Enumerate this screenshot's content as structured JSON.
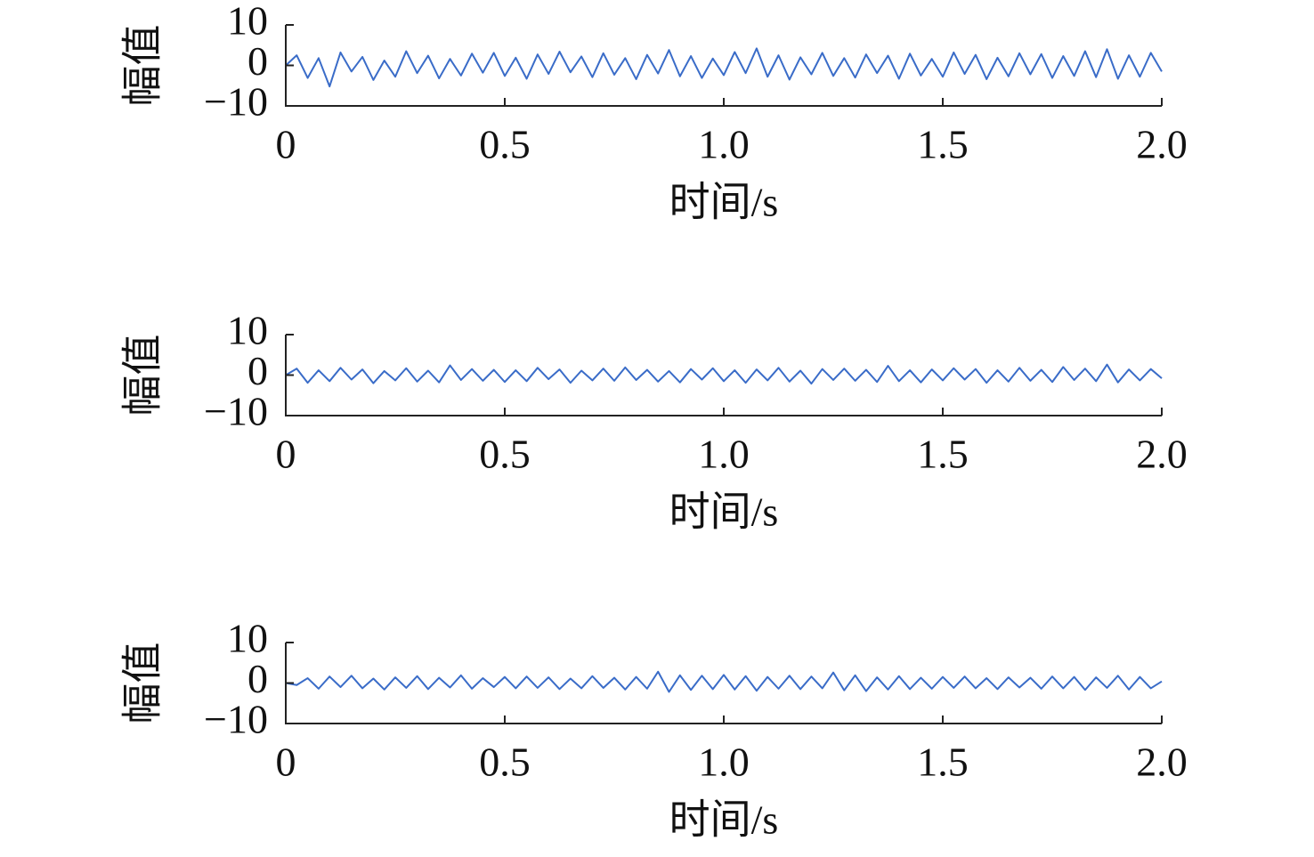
{
  "chart_data": [
    {
      "type": "line",
      "xlabel": "时间/s",
      "ylabel": "幅值",
      "x": [
        0,
        0.025,
        0.05,
        0.075,
        0.1,
        0.125,
        0.15,
        0.175,
        0.2,
        0.225,
        0.25,
        0.275,
        0.3,
        0.325,
        0.35,
        0.375,
        0.4,
        0.425,
        0.45,
        0.475,
        0.5,
        0.525,
        0.55,
        0.575,
        0.6,
        0.625,
        0.65,
        0.675,
        0.7,
        0.725,
        0.75,
        0.775,
        0.8,
        0.825,
        0.85,
        0.875,
        0.9,
        0.925,
        0.95,
        0.975,
        1,
        1.025,
        1.05,
        1.075,
        1.1,
        1.125,
        1.15,
        1.175,
        1.2,
        1.225,
        1.25,
        1.275,
        1.3,
        1.325,
        1.35,
        1.375,
        1.4,
        1.425,
        1.45,
        1.475,
        1.5,
        1.525,
        1.55,
        1.575,
        1.6,
        1.625,
        1.65,
        1.675,
        1.7,
        1.725,
        1.75,
        1.775,
        1.8,
        1.825,
        1.85,
        1.875,
        1.9,
        1.925,
        1.95,
        1.975,
        2
      ],
      "series": [
        {
          "color": "#3a6cc8",
          "values": [
            0,
            2.5,
            -3.1,
            1.8,
            -5.2,
            3.2,
            -1.5,
            2.1,
            -3.6,
            1.2,
            -2.8,
            3.5,
            -1.9,
            2.4,
            -3.2,
            1.6,
            -2.5,
            2.9,
            -1.8,
            3.1,
            -2.6,
            1.9,
            -3.3,
            2.7,
            -2.1,
            3.4,
            -1.7,
            2.2,
            -2.9,
            3.0,
            -2.3,
            1.8,
            -3.4,
            2.6,
            -2.0,
            3.8,
            -2.7,
            2.3,
            -3.1,
            1.7,
            -2.4,
            3.3,
            -1.9,
            4.2,
            -2.8,
            2.5,
            -3.5,
            2.0,
            -2.2,
            3.1,
            -2.6,
            1.8,
            -3.0,
            2.7,
            -1.9,
            2.4,
            -3.3,
            2.9,
            -2.5,
            1.6,
            -2.8,
            3.2,
            -2.1,
            2.6,
            -3.4,
            1.9,
            -2.7,
            3.0,
            -2.2,
            2.8,
            -3.1,
            2.3,
            -2.6,
            3.5,
            -2.9,
            4.0,
            -3.3,
            2.5,
            -2.8,
            3.1,
            -1.5
          ]
        }
      ],
      "xlim": [
        0,
        2
      ],
      "xticks": [
        0,
        0.5,
        {
          "value": 1,
          "label": "1.0"
        },
        1.5,
        {
          "value": 2,
          "label": "2.0"
        }
      ],
      "ylim": [
        -10,
        10
      ],
      "yticks": [
        {
          "value": -10,
          "label": "−10"
        },
        0,
        10
      ]
    },
    {
      "type": "line",
      "xlabel": "时间/s",
      "ylabel": "幅值",
      "x": [
        0,
        0.025,
        0.05,
        0.075,
        0.1,
        0.125,
        0.15,
        0.175,
        0.2,
        0.225,
        0.25,
        0.275,
        0.3,
        0.325,
        0.35,
        0.375,
        0.4,
        0.425,
        0.45,
        0.475,
        0.5,
        0.525,
        0.55,
        0.575,
        0.6,
        0.625,
        0.65,
        0.675,
        0.7,
        0.725,
        0.75,
        0.775,
        0.8,
        0.825,
        0.85,
        0.875,
        0.9,
        0.925,
        0.95,
        0.975,
        1,
        1.025,
        1.05,
        1.075,
        1.1,
        1.125,
        1.15,
        1.175,
        1.2,
        1.225,
        1.25,
        1.275,
        1.3,
        1.325,
        1.35,
        1.375,
        1.4,
        1.425,
        1.45,
        1.475,
        1.5,
        1.525,
        1.55,
        1.575,
        1.6,
        1.625,
        1.65,
        1.675,
        1.7,
        1.725,
        1.75,
        1.775,
        1.8,
        1.825,
        1.85,
        1.875,
        1.9,
        1.925,
        1.95,
        1.975,
        2
      ],
      "series": [
        {
          "color": "#3a6cc8",
          "values": [
            0,
            1.6,
            -1.9,
            1.2,
            -1.5,
            1.8,
            -1.1,
            1.4,
            -2.0,
            1.0,
            -1.3,
            1.7,
            -1.6,
            1.1,
            -1.8,
            2.4,
            -1.2,
            1.5,
            -1.4,
            1.3,
            -1.7,
            1.2,
            -1.5,
            1.8,
            -1.0,
            1.4,
            -1.9,
            1.1,
            -1.3,
            1.6,
            -1.4,
            1.9,
            -1.2,
            1.3,
            -1.6,
            1.0,
            -1.8,
            1.5,
            -1.1,
            1.7,
            -1.5,
            1.2,
            -1.9,
            1.4,
            -1.3,
            1.8,
            -1.6,
            1.1,
            -2.1,
            1.5,
            -1.2,
            1.6,
            -1.4,
            1.3,
            -1.7,
            2.3,
            -1.5,
            1.2,
            -1.8,
            1.4,
            -1.3,
            1.7,
            -1.1,
            1.5,
            -1.9,
            1.2,
            -1.6,
            1.8,
            -1.4,
            1.3,
            -1.7,
            2.0,
            -1.2,
            1.6,
            -1.5,
            2.6,
            -1.8,
            1.4,
            -1.3,
            1.5,
            -0.8
          ]
        }
      ],
      "xlim": [
        0,
        2
      ],
      "xticks": [
        0,
        0.5,
        {
          "value": 1,
          "label": "1.0"
        },
        1.5,
        {
          "value": 2,
          "label": "2.0"
        }
      ],
      "ylim": [
        -10,
        10
      ],
      "yticks": [
        {
          "value": -10,
          "label": "−10"
        },
        0,
        10
      ]
    },
    {
      "type": "line",
      "xlabel": "时间/s",
      "ylabel": "幅值",
      "x": [
        0,
        0.025,
        0.05,
        0.075,
        0.1,
        0.125,
        0.15,
        0.175,
        0.2,
        0.225,
        0.25,
        0.275,
        0.3,
        0.325,
        0.35,
        0.375,
        0.4,
        0.425,
        0.45,
        0.475,
        0.5,
        0.525,
        0.55,
        0.575,
        0.6,
        0.625,
        0.65,
        0.675,
        0.7,
        0.725,
        0.75,
        0.775,
        0.8,
        0.825,
        0.85,
        0.875,
        0.9,
        0.925,
        0.95,
        0.975,
        1,
        1.025,
        1.05,
        1.075,
        1.1,
        1.125,
        1.15,
        1.175,
        1.2,
        1.225,
        1.25,
        1.275,
        1.3,
        1.325,
        1.35,
        1.375,
        1.4,
        1.425,
        1.45,
        1.475,
        1.5,
        1.525,
        1.55,
        1.575,
        1.6,
        1.625,
        1.65,
        1.675,
        1.7,
        1.725,
        1.75,
        1.775,
        1.8,
        1.825,
        1.85,
        1.875,
        1.9,
        1.925,
        1.95,
        1.975,
        2
      ],
      "series": [
        {
          "color": "#3a6cc8",
          "values": [
            0,
            -0.5,
            1.2,
            -1.4,
            1.6,
            -1.0,
            1.8,
            -1.3,
            1.1,
            -1.6,
            1.4,
            -1.2,
            1.7,
            -1.5,
            1.3,
            -1.1,
            1.9,
            -1.4,
            1.2,
            -1.0,
            1.5,
            -1.3,
            1.6,
            -1.2,
            1.4,
            -1.5,
            1.1,
            -1.3,
            1.7,
            -1.2,
            1.3,
            -1.6,
            1.5,
            -1.4,
            2.8,
            -2.2,
            1.9,
            -1.7,
            1.8,
            -1.5,
            2.0,
            -1.6,
            1.7,
            -1.9,
            1.5,
            -1.4,
            1.8,
            -1.5,
            1.6,
            -1.3,
            2.6,
            -1.8,
            1.9,
            -2.0,
            1.4,
            -1.6,
            1.7,
            -1.5,
            1.3,
            -1.4,
            1.5,
            -1.2,
            1.6,
            -1.3,
            1.2,
            -1.5,
            1.4,
            -1.1,
            1.3,
            -1.4,
            1.6,
            -1.3,
            1.5,
            -1.7,
            1.4,
            -1.2,
            1.8,
            -1.6,
            1.5,
            -1.3,
            0.4
          ]
        }
      ],
      "xlim": [
        0,
        2
      ],
      "xticks": [
        0,
        0.5,
        {
          "value": 1,
          "label": "1.0"
        },
        1.5,
        {
          "value": 2,
          "label": "2.0"
        }
      ],
      "ylim": [
        -10,
        10
      ],
      "yticks": [
        {
          "value": -10,
          "label": "−10"
        },
        0,
        10
      ]
    }
  ]
}
